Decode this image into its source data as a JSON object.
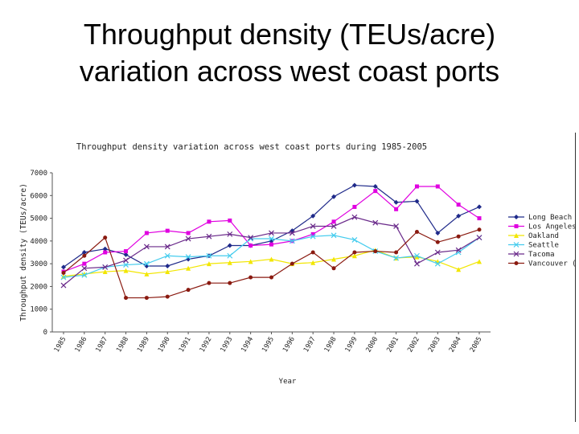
{
  "slide": {
    "title_line1": "Throughput density (TEUs/acre)",
    "title_line2": "variation across west coast ports"
  },
  "chart_data": {
    "type": "line",
    "title": "Throughput density variation across west coast ports during 1985-2005",
    "xlabel": "Year",
    "ylabel": "Throughput density (TEUs/acre)",
    "ylim": [
      0,
      7000
    ],
    "yticks": [
      "0",
      "1000",
      "2000",
      "3000",
      "4000",
      "5000",
      "6000",
      "7000"
    ],
    "categories": [
      "1985",
      "1986",
      "1987",
      "1988",
      "1989",
      "1990",
      "1991",
      "1992",
      "1993",
      "1994",
      "1995",
      "1996",
      "1997",
      "1998",
      "1999",
      "2000",
      "2001",
      "2002",
      "2003",
      "2004",
      "2005"
    ],
    "legend_position": "right",
    "grid": false,
    "series": [
      {
        "name": "Long Beach",
        "color": "#1f2a8a",
        "marker": "diamond",
        "values": [
          2850,
          3500,
          3650,
          3400,
          2900,
          2900,
          3200,
          3350,
          3800,
          3800,
          4000,
          4450,
          5100,
          5950,
          6450,
          6400,
          5700,
          5750,
          4350,
          5100,
          5500
        ]
      },
      {
        "name": "Los Angeles",
        "color": "#e000e0",
        "marker": "square",
        "values": [
          2650,
          3000,
          3500,
          3550,
          4350,
          4450,
          4350,
          4850,
          4900,
          3800,
          3850,
          4000,
          4300,
          4850,
          5500,
          6200,
          5400,
          6400,
          6400,
          5600,
          5000
        ]
      },
      {
        "name": "Oakland",
        "color": "#f2e600",
        "marker": "triangle",
        "values": [
          2450,
          2550,
          2650,
          2700,
          2550,
          2650,
          2800,
          3000,
          3050,
          3100,
          3200,
          3000,
          3050,
          3200,
          3350,
          3600,
          3250,
          3300,
          3100,
          2750,
          3100
        ]
      },
      {
        "name": "Seattle",
        "color": "#44ccee",
        "marker": "x",
        "values": [
          2400,
          2500,
          2850,
          2950,
          3000,
          3350,
          3300,
          3350,
          3350,
          4100,
          4100,
          4000,
          4200,
          4250,
          4050,
          3550,
          3250,
          3350,
          3000,
          3500,
          4150
        ]
      },
      {
        "name": "Tacoma",
        "color": "#6a2a8a",
        "marker": "x",
        "values": [
          2050,
          2800,
          2850,
          3150,
          3750,
          3750,
          4100,
          4200,
          4300,
          4150,
          4350,
          4350,
          4650,
          4650,
          5050,
          4800,
          4650,
          3000,
          3500,
          3600,
          4150
        ]
      },
      {
        "name": "Vancouver (BC)",
        "color": "#8a1a10",
        "marker": "circle",
        "values": [
          2600,
          3350,
          4150,
          1500,
          1500,
          1550,
          1850,
          2150,
          2150,
          2400,
          2400,
          3000,
          3500,
          2800,
          3500,
          3550,
          3500,
          4400,
          3950,
          4200,
          4500
        ]
      }
    ]
  }
}
